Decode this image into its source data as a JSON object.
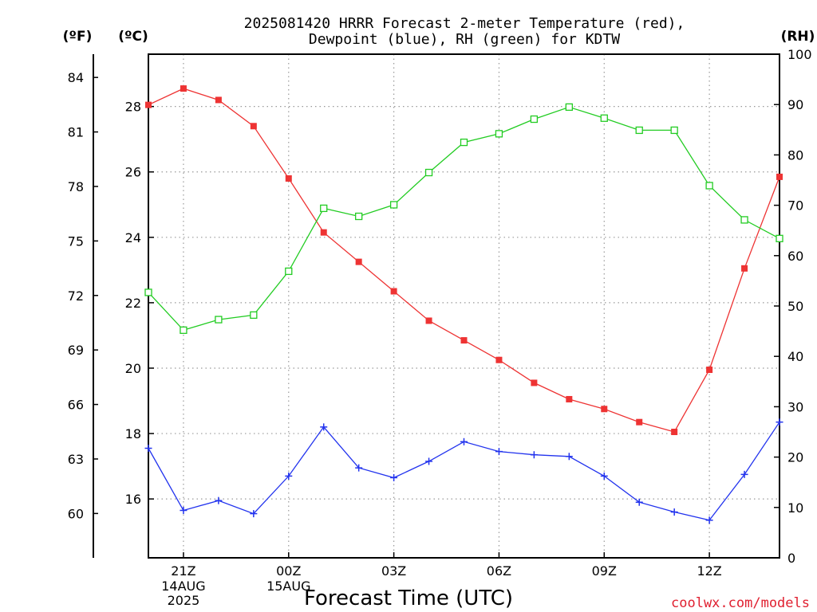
{
  "chart_data": {
    "type": "line",
    "title_line1": "2025081420 HRRR Forecast 2-meter Temperature (red),",
    "title_line2": "Dewpoint (blue), RH (green) for KDTW",
    "xlabel": "Forecast Time (UTC)",
    "credit": "coolwx.com/models",
    "units": {
      "fahrenheit": "(ºF)",
      "celsius": "(ºC)",
      "rh": "(RH)"
    },
    "x_hours": [
      20,
      21,
      22,
      23,
      24,
      25,
      26,
      27,
      28,
      29,
      30,
      31,
      32,
      33,
      34,
      35,
      36,
      37,
      38
    ],
    "x_ticks": [
      {
        "hour": 21,
        "label": "21Z",
        "date": "14AUG",
        "year": "2025"
      },
      {
        "hour": 24,
        "label": "00Z",
        "date": "15AUG",
        "year": ""
      },
      {
        "hour": 27,
        "label": "03Z",
        "date": "",
        "year": ""
      },
      {
        "hour": 30,
        "label": "06Z",
        "date": "",
        "year": ""
      },
      {
        "hour": 33,
        "label": "09Z",
        "date": "",
        "year": ""
      },
      {
        "hour": 36,
        "label": "12Z",
        "date": "",
        "year": ""
      }
    ],
    "xlim": [
      20,
      38
    ],
    "ylim_celsius": [
      14.2,
      29.6
    ],
    "yticks_celsius": [
      16,
      18,
      20,
      22,
      24,
      26,
      28
    ],
    "yticks_fahrenheit": [
      60,
      63,
      66,
      69,
      72,
      75,
      78,
      81,
      84
    ],
    "ylim_rh": [
      0,
      100
    ],
    "yticks_rh": [
      0,
      10,
      20,
      30,
      40,
      50,
      60,
      70,
      80,
      90,
      100
    ],
    "grid": true,
    "series": [
      {
        "name": "Temperature (red)",
        "axis": "celsius",
        "color": "#ee3333",
        "marker": "filled-square",
        "values": [
          28.05,
          28.55,
          28.2,
          27.4,
          25.8,
          24.15,
          23.25,
          22.35,
          21.45,
          20.85,
          20.25,
          19.55,
          19.05,
          18.75,
          18.35,
          18.05,
          19.95,
          23.05,
          25.85
        ]
      },
      {
        "name": "Dewpoint (blue)",
        "axis": "celsius",
        "color": "#2233ee",
        "marker": "plus",
        "values": [
          17.55,
          15.65,
          15.95,
          15.55,
          16.7,
          18.2,
          16.95,
          16.65,
          17.15,
          17.75,
          17.45,
          17.35,
          17.3,
          16.7,
          15.9,
          15.6,
          15.35,
          16.75,
          18.35
        ]
      },
      {
        "name": "RH (green)",
        "axis": "rh",
        "color": "#22cc22",
        "marker": "open-square",
        "values": [
          52.7,
          45.2,
          47.3,
          48.2,
          56.9,
          69.4,
          67.8,
          70.1,
          76.5,
          82.5,
          84.2,
          87.1,
          89.5,
          87.3,
          84.9,
          84.9,
          73.9,
          67.1,
          63.4
        ]
      }
    ]
  }
}
